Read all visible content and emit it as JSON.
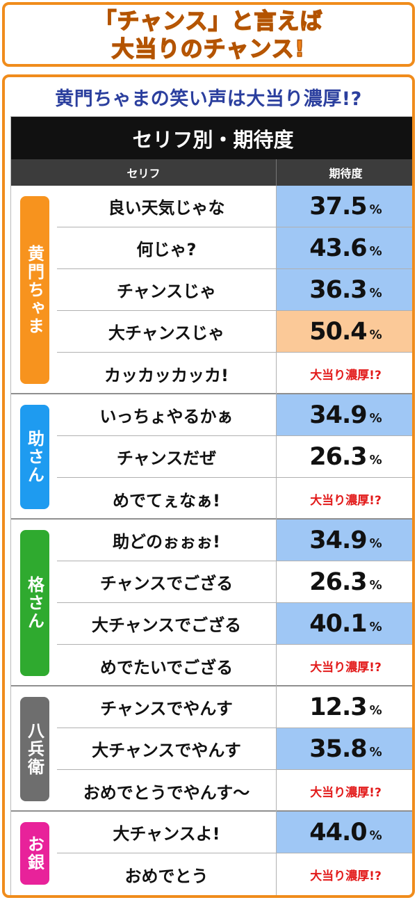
{
  "banner": {
    "line1": "「チャンス」と言えば",
    "line2": "大当りのチャンス!"
  },
  "subtitle": "黄門ちゃまの笑い声は大当り濃厚!?",
  "table": {
    "title": "セリフ別・期待度",
    "col_line": "セリフ",
    "col_expect": "期待度",
    "percent_sign": "%",
    "groups": [
      {
        "character": "黄門ちゃま",
        "color": "#f7931e",
        "rows": [
          {
            "line": "良い天気じゃな",
            "value": "37.5",
            "highlight": "blue"
          },
          {
            "line": "何じゃ?",
            "value": "43.6",
            "highlight": "blue"
          },
          {
            "line": "チャンスじゃ",
            "value": "36.3",
            "highlight": "blue"
          },
          {
            "line": "大チャンスじゃ",
            "value": "50.4",
            "highlight": "orange"
          },
          {
            "line": "カッカッカッカ!",
            "text": "大当り濃厚!?"
          }
        ]
      },
      {
        "character": "助さん",
        "color": "#1e9bf0",
        "rows": [
          {
            "line": "いっちょやるかぁ",
            "value": "34.9",
            "highlight": "blue"
          },
          {
            "line": "チャンスだぜ",
            "value": "26.3"
          },
          {
            "line": "めでてぇなぁ!",
            "text": "大当り濃厚!?"
          }
        ]
      },
      {
        "character": "格さん",
        "color": "#2faa2f",
        "rows": [
          {
            "line": "助どのぉぉぉ!",
            "value": "34.9",
            "highlight": "blue"
          },
          {
            "line": "チャンスでござる",
            "value": "26.3"
          },
          {
            "line": "大チャンスでござる",
            "value": "40.1",
            "highlight": "blue"
          },
          {
            "line": "めでたいでござる",
            "text": "大当り濃厚!?"
          }
        ]
      },
      {
        "character": "八兵衛",
        "color": "#6e6e6e",
        "rows": [
          {
            "line": "チャンスでやんす",
            "value": "12.3"
          },
          {
            "line": "大チャンスでやんす",
            "value": "35.8",
            "highlight": "blue"
          },
          {
            "line": "おめでとうでやんす～",
            "text": "大当り濃厚!?"
          }
        ]
      },
      {
        "character": "お銀",
        "color": "#e8229a",
        "rows": [
          {
            "line": "大チャンスよ!",
            "value": "44.0",
            "highlight": "blue"
          },
          {
            "line": "おめでとう",
            "text": "大当り濃厚!?"
          }
        ]
      }
    ]
  }
}
